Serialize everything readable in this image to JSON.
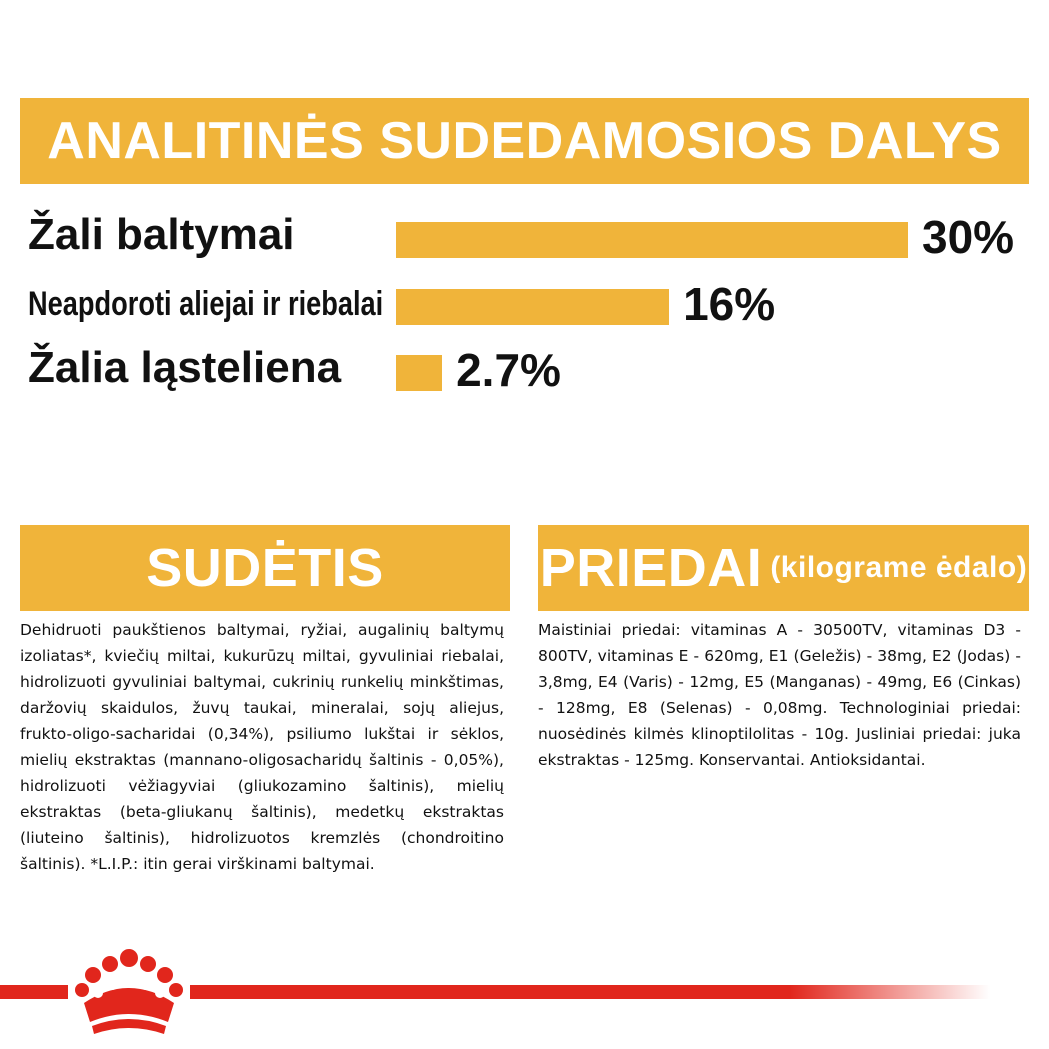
{
  "header": {
    "title": "ANALITINĖS SUDEDAMOSIOS DALYS"
  },
  "chart_data": {
    "type": "bar",
    "orientation": "horizontal",
    "categories": [
      "Žali baltymai",
      "Neapdoroti aliejai ir riebalai",
      "Žalia ląsteliena"
    ],
    "values": [
      30,
      16,
      2.7
    ],
    "value_labels": [
      "30%",
      "16%",
      "2.7%"
    ],
    "unit": "%",
    "bar_color": "#f0b43a",
    "grid": false
  },
  "composition": {
    "title": "SUDĖTIS",
    "text": "Dehidruoti paukštienos baltymai, ryžiai, augalinių baltymų izoliatas*, kviečių miltai, kukurūzų miltai, gyvuliniai riebalai, hidrolizuoti gyvuliniai baltymai, cukrinių runkelių minkštimas, daržovių skaidulos, žuvų taukai, mineralai, sojų aliejus, frukto-oligo-sacharidai (0,34%), psiliumo lukštai ir sėklos, mielių ekstraktas (mannano-oligosacharidų šaltinis - 0,05%), hidrolizuoti vėžiagyviai (gliukozamino šaltinis), mielių ekstraktas (beta-gliukanų šaltinis), medetkų ekstraktas (liuteino šaltinis), hidrolizuotos kremzlės (chondroitino šaltinis). *L.I.P.: itin gerai virškinami baltymai."
  },
  "additives": {
    "title": "PRIEDAI",
    "subtitle": "(kilograme ėdalo)",
    "text": "Maistiniai priedai: vitaminas A - 30500TV, vitaminas D3 - 800TV, vitaminas E - 620mg, E1 (Geležis) - 38mg, E2 (Jodas) - 3,8mg, E4 (Varis) - 12mg, E5 (Manganas) - 49mg, E6 (Cinkas) - 128mg, E8 (Selenas) - 0,08mg. Technologiniai priedai: nuosėdinės kilmės klinoptilolitas - 10g. Jusliniai priedai: juka ekstraktas - 125mg. Konservantai. Antioksidantai."
  },
  "brand": {
    "logo": "royal-canin-crown-icon",
    "accent": "#e1261c"
  },
  "colors": {
    "banner": "#f0b43a",
    "brand_red": "#e1261c"
  }
}
